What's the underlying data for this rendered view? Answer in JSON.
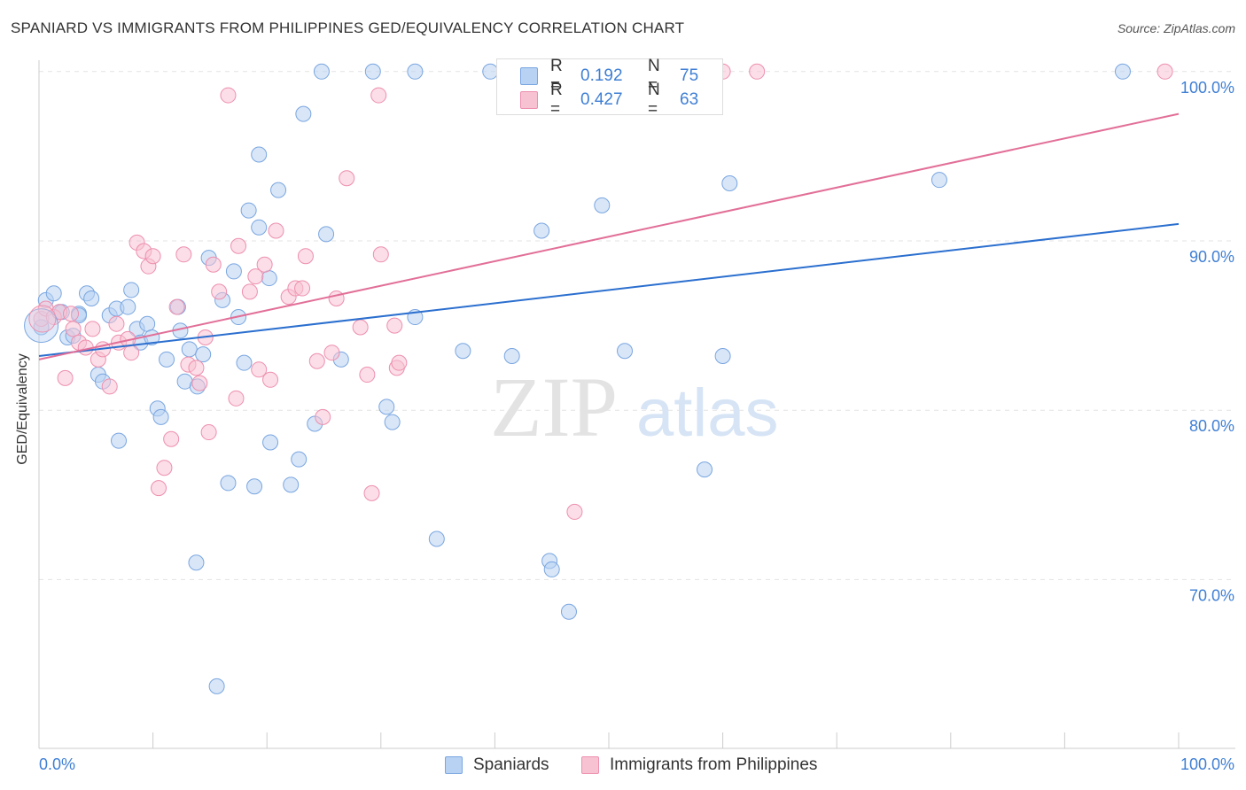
{
  "title": "SPANIARD VS IMMIGRANTS FROM PHILIPPINES GED/EQUIVALENCY CORRELATION CHART",
  "source": "Source: ZipAtlas.com",
  "watermark": {
    "zip": "ZIP",
    "atlas": "atlas"
  },
  "legend": [
    {
      "r_label": "R =",
      "r_value": "0.192",
      "n_label": "N =",
      "n_value": "75"
    },
    {
      "r_label": "R =",
      "r_value": "0.427",
      "n_label": "N =",
      "n_value": "63"
    }
  ],
  "bottom_legend": [
    "Spaniards",
    "Immigrants from Philippines"
  ],
  "colors": {
    "blue_fill": "#b8d2f3",
    "blue_stroke": "#7aa6e0",
    "blue_line": "#2b6fcf",
    "pink_fill": "#f7c3d3",
    "pink_stroke": "#ee8fae",
    "pink_line": "#e26f98",
    "axis_text": "#3f7fd4",
    "grid": "#e3e3e3"
  },
  "chart_data": {
    "type": "scatter",
    "title": "SPANIARD VS IMMIGRANTS FROM PHILIPPINES GED/EQUIVALENCY CORRELATION CHART",
    "xlabel": "",
    "ylabel": "GED/Equivalency",
    "xlim": [
      0,
      100
    ],
    "ylim": [
      60,
      101
    ],
    "x_tick_labels": [
      "0.0%",
      "100.0%"
    ],
    "y_ticks": [
      70,
      80,
      90,
      100
    ],
    "y_tick_labels": [
      "70.0%",
      "80.0%",
      "90.0%",
      "100.0%"
    ],
    "grid": true,
    "legend_position": "top-center",
    "series": [
      {
        "name": "Spaniards",
        "r": 0.192,
        "n": 75,
        "trend": {
          "x0": 0,
          "y0": 83.2,
          "x1": 100,
          "y1": 91.0
        },
        "points": [
          [
            0.2,
            84.9
          ],
          [
            0.6,
            86.5
          ],
          [
            1.3,
            86.9
          ],
          [
            1.8,
            85.8
          ],
          [
            2.5,
            84.3
          ],
          [
            3.0,
            84.4
          ],
          [
            3.5,
            85.7
          ],
          [
            4.2,
            86.9
          ],
          [
            4.6,
            86.6
          ],
          [
            5.2,
            82.1
          ],
          [
            5.6,
            81.7
          ],
          [
            6.2,
            85.6
          ],
          [
            6.8,
            86.0
          ],
          [
            7.0,
            78.2
          ],
          [
            7.8,
            86.1
          ],
          [
            8.1,
            87.1
          ],
          [
            8.6,
            84.8
          ],
          [
            8.9,
            84.0
          ],
          [
            9.5,
            85.1
          ],
          [
            9.9,
            84.3
          ],
          [
            10.4,
            80.1
          ],
          [
            10.7,
            79.6
          ],
          [
            11.2,
            83.0
          ],
          [
            12.2,
            86.1
          ],
          [
            12.4,
            84.7
          ],
          [
            12.8,
            81.7
          ],
          [
            13.2,
            83.6
          ],
          [
            13.8,
            71.0
          ],
          [
            13.9,
            81.4
          ],
          [
            14.4,
            83.3
          ],
          [
            14.9,
            89.0
          ],
          [
            15.6,
            63.7
          ],
          [
            16.1,
            86.5
          ],
          [
            16.6,
            75.7
          ],
          [
            17.1,
            88.2
          ],
          [
            17.5,
            85.5
          ],
          [
            18.0,
            82.8
          ],
          [
            18.4,
            91.8
          ],
          [
            18.9,
            75.5
          ],
          [
            19.3,
            90.8
          ],
          [
            19.3,
            95.1
          ],
          [
            20.2,
            87.8
          ],
          [
            20.3,
            78.1
          ],
          [
            21.0,
            93.0
          ],
          [
            22.1,
            75.6
          ],
          [
            22.8,
            77.1
          ],
          [
            23.2,
            97.5
          ],
          [
            24.2,
            79.2
          ],
          [
            24.8,
            100.0
          ],
          [
            25.2,
            90.4
          ],
          [
            26.5,
            83.0
          ],
          [
            29.3,
            100.0
          ],
          [
            30.5,
            80.2
          ],
          [
            31.0,
            79.3
          ],
          [
            33.0,
            100.0
          ],
          [
            33.0,
            85.5
          ],
          [
            34.9,
            72.4
          ],
          [
            37.2,
            83.5
          ],
          [
            39.6,
            100.0
          ],
          [
            41.5,
            83.2
          ],
          [
            44.1,
            90.6
          ],
          [
            44.8,
            71.1
          ],
          [
            45.0,
            70.6
          ],
          [
            46.5,
            68.1
          ],
          [
            46.8,
            100.0
          ],
          [
            49.4,
            92.1
          ],
          [
            51.4,
            83.5
          ],
          [
            58.4,
            76.5
          ],
          [
            60.0,
            83.2
          ],
          [
            60.6,
            93.4
          ],
          [
            79.0,
            93.6
          ],
          [
            95.1,
            100.0
          ],
          [
            44.0,
            99.2
          ],
          [
            3.5,
            85.6
          ],
          [
            2.0,
            85.8
          ]
        ]
      },
      {
        "name": "Immigrants from Philippines",
        "r": 0.427,
        "n": 63,
        "trend": {
          "x0": 0,
          "y0": 83.0,
          "x1": 100,
          "y1": 97.5
        },
        "points": [
          [
            0.2,
            85.4
          ],
          [
            0.6,
            86.0
          ],
          [
            1.3,
            85.5
          ],
          [
            1.8,
            85.8
          ],
          [
            2.3,
            81.9
          ],
          [
            2.8,
            85.7
          ],
          [
            3.0,
            84.8
          ],
          [
            3.5,
            84.0
          ],
          [
            4.1,
            83.7
          ],
          [
            4.7,
            84.8
          ],
          [
            5.2,
            83.0
          ],
          [
            5.6,
            83.6
          ],
          [
            6.2,
            81.4
          ],
          [
            6.8,
            85.1
          ],
          [
            7.0,
            84.0
          ],
          [
            7.8,
            84.2
          ],
          [
            8.1,
            83.4
          ],
          [
            8.6,
            89.9
          ],
          [
            9.2,
            89.4
          ],
          [
            9.6,
            88.5
          ],
          [
            10.0,
            89.1
          ],
          [
            10.5,
            75.4
          ],
          [
            11.0,
            76.6
          ],
          [
            11.6,
            78.3
          ],
          [
            12.1,
            86.1
          ],
          [
            12.7,
            89.2
          ],
          [
            13.1,
            82.7
          ],
          [
            13.8,
            82.5
          ],
          [
            14.1,
            81.6
          ],
          [
            14.6,
            84.3
          ],
          [
            14.9,
            78.7
          ],
          [
            15.3,
            88.6
          ],
          [
            15.8,
            87.0
          ],
          [
            16.6,
            98.6
          ],
          [
            17.3,
            80.7
          ],
          [
            17.5,
            89.7
          ],
          [
            18.5,
            87.0
          ],
          [
            19.0,
            87.9
          ],
          [
            19.3,
            82.4
          ],
          [
            19.8,
            88.6
          ],
          [
            20.3,
            81.8
          ],
          [
            20.8,
            90.6
          ],
          [
            21.9,
            86.7
          ],
          [
            22.5,
            87.2
          ],
          [
            23.1,
            87.2
          ],
          [
            23.4,
            89.1
          ],
          [
            24.4,
            82.9
          ],
          [
            24.9,
            79.6
          ],
          [
            25.7,
            83.4
          ],
          [
            26.1,
            86.6
          ],
          [
            27.0,
            93.7
          ],
          [
            28.2,
            84.9
          ],
          [
            28.8,
            82.1
          ],
          [
            29.2,
            75.1
          ],
          [
            29.8,
            98.6
          ],
          [
            30.0,
            89.2
          ],
          [
            31.2,
            85.0
          ],
          [
            31.4,
            82.5
          ],
          [
            31.6,
            82.8
          ],
          [
            47.0,
            74.0
          ],
          [
            60.0,
            100.0
          ],
          [
            63.0,
            100.0
          ],
          [
            98.8,
            100.0
          ]
        ]
      }
    ]
  }
}
